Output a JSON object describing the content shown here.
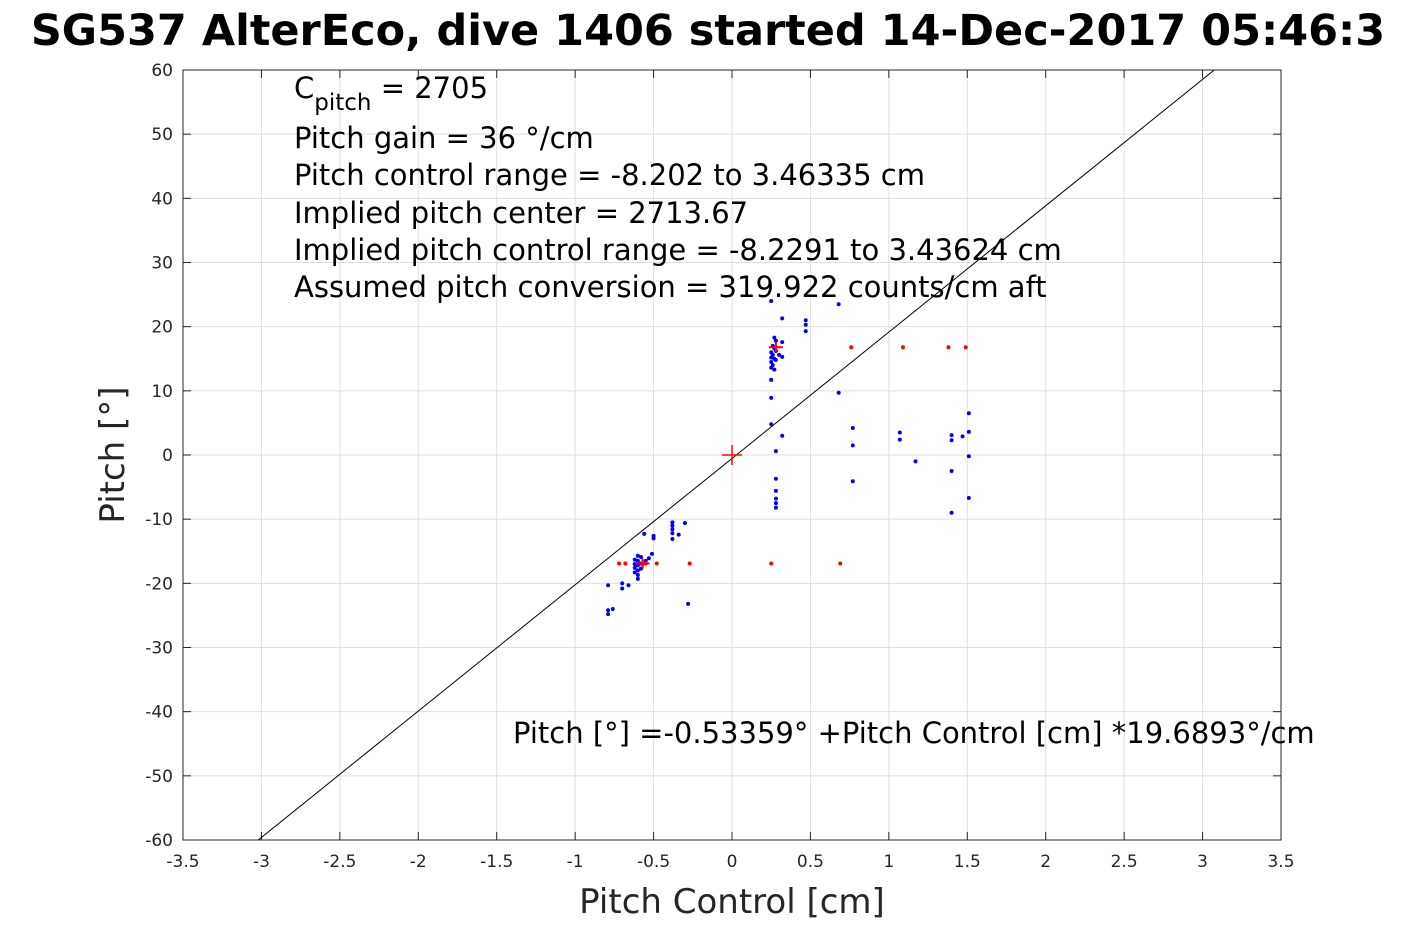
{
  "chart_data": {
    "type": "scatter",
    "title": "SG537 AlterEco, dive 1406 started 14-Dec-2017 05:46:3",
    "xlabel": "Pitch Control [cm]",
    "ylabel": "Pitch [°]",
    "xlim": [
      -3.5,
      3.5
    ],
    "ylim": [
      -60,
      60
    ],
    "x_ticks": [
      "-3.5",
      "-3",
      "-2.5",
      "-2",
      "-1.5",
      "-1",
      "-0.5",
      "0",
      "0.5",
      "1",
      "1.5",
      "2",
      "2.5",
      "3",
      "3.5"
    ],
    "y_ticks": [
      "60",
      "50",
      "40",
      "30",
      "20",
      "10",
      "0",
      "-10",
      "-20",
      "-30",
      "-40",
      "-50",
      "-60"
    ],
    "grid": true,
    "colors": {
      "blue_points": "#0000ff",
      "red_points": "#ff0000",
      "fit_line": "#000000"
    },
    "annotations": {
      "c_pitch_main": "C",
      "c_pitch_sub": "pitch",
      "c_pitch_value": " = 2705",
      "line2": "Pitch gain = 36 °/cm",
      "line3": "Pitch control range = -8.202 to 3.46335 cm",
      "line4": "Implied pitch center = 2713.67",
      "line5": "Implied pitch control range = -8.2291 to 3.43624 cm",
      "line6": "Assumed pitch conversion = 319.922 counts/cm aft",
      "fit_equation": "Pitch [°] =-0.53359° +Pitch Control [cm] *19.6893°/cm"
    },
    "fit_line": {
      "intercept": -0.53359,
      "slope": 19.6893
    },
    "center_marker": {
      "x": 0,
      "y": 0
    },
    "series": [
      {
        "color": "#0000ff",
        "points": [
          [
            -0.79,
            -20.3
          ],
          [
            -0.79,
            -24.2
          ],
          [
            -0.79,
            -24.8
          ],
          [
            -0.76,
            -24.0
          ],
          [
            -0.7,
            -20.0
          ],
          [
            -0.7,
            -20.8
          ],
          [
            -0.66,
            -20.3
          ],
          [
            -0.62,
            -16.3
          ],
          [
            -0.62,
            -17.0
          ],
          [
            -0.62,
            -17.6
          ],
          [
            -0.62,
            -18.3
          ],
          [
            -0.6,
            -15.7
          ],
          [
            -0.6,
            -16.5
          ],
          [
            -0.6,
            -17.2
          ],
          [
            -0.6,
            -18.0
          ],
          [
            -0.6,
            -18.7
          ],
          [
            -0.6,
            -19.3
          ],
          [
            -0.58,
            -15.9
          ],
          [
            -0.58,
            -16.9
          ],
          [
            -0.58,
            -17.7
          ],
          [
            -0.56,
            -12.3
          ],
          [
            -0.55,
            -16.5
          ],
          [
            -0.53,
            -16.1
          ],
          [
            -0.51,
            -15.4
          ],
          [
            -0.5,
            -12.6
          ],
          [
            -0.5,
            -13.0
          ],
          [
            -0.38,
            -10.5
          ],
          [
            -0.38,
            -11.0
          ],
          [
            -0.38,
            -11.6
          ],
          [
            -0.38,
            -12.2
          ],
          [
            -0.38,
            -13.1
          ],
          [
            -0.34,
            -12.4
          ],
          [
            -0.3,
            -10.6
          ],
          [
            -0.28,
            -23.2
          ],
          [
            0.25,
            24.0
          ],
          [
            0.25,
            16.0
          ],
          [
            0.25,
            15.2
          ],
          [
            0.25,
            14.5
          ],
          [
            0.25,
            13.6
          ],
          [
            0.25,
            11.7
          ],
          [
            0.25,
            8.9
          ],
          [
            0.25,
            4.8
          ],
          [
            0.26,
            17.0
          ],
          [
            0.26,
            15.6
          ],
          [
            0.26,
            14.0
          ],
          [
            0.27,
            18.3
          ],
          [
            0.27,
            16.6
          ],
          [
            0.27,
            15.0
          ],
          [
            0.27,
            13.3
          ],
          [
            0.28,
            17.8
          ],
          [
            0.28,
            16.2
          ],
          [
            0.28,
            14.8
          ],
          [
            0.28,
            0.6
          ],
          [
            0.28,
            -3.7
          ],
          [
            0.28,
            -5.6
          ],
          [
            0.28,
            -6.8
          ],
          [
            0.28,
            -7.5
          ],
          [
            0.28,
            -8.2
          ],
          [
            0.3,
            15.6
          ],
          [
            0.32,
            21.3
          ],
          [
            0.32,
            17.6
          ],
          [
            0.32,
            15.3
          ],
          [
            0.32,
            3.0
          ],
          [
            0.47,
            21.0
          ],
          [
            0.47,
            20.3
          ],
          [
            0.47,
            19.3
          ],
          [
            0.68,
            23.5
          ],
          [
            0.68,
            9.7
          ],
          [
            0.77,
            4.2
          ],
          [
            0.77,
            1.5
          ],
          [
            0.77,
            -4.1
          ],
          [
            1.07,
            3.5
          ],
          [
            1.07,
            2.4
          ],
          [
            1.17,
            -1.0
          ],
          [
            1.4,
            3.1
          ],
          [
            1.4,
            2.3
          ],
          [
            1.4,
            -2.5
          ],
          [
            1.4,
            -9.0
          ],
          [
            1.47,
            2.9
          ],
          [
            1.51,
            6.5
          ],
          [
            1.51,
            3.6
          ],
          [
            1.51,
            -0.2
          ],
          [
            1.51,
            -6.7
          ]
        ]
      },
      {
        "color": "#ff0000",
        "points": [
          [
            -0.72,
            -16.9
          ],
          [
            -0.68,
            -16.9
          ],
          [
            -0.57,
            -16.9
          ],
          [
            -0.55,
            -16.9
          ],
          [
            -0.48,
            -16.9
          ],
          [
            -0.27,
            -16.9
          ],
          [
            0.25,
            -16.9
          ],
          [
            0.69,
            -16.9
          ],
          [
            0.76,
            16.8
          ],
          [
            1.09,
            16.8
          ],
          [
            1.38,
            16.8
          ],
          [
            1.49,
            16.8
          ]
        ]
      },
      {
        "color": "#ff0000",
        "marker": "+",
        "points": [
          [
            0.28,
            16.8
          ],
          [
            -0.57,
            -16.9
          ]
        ]
      }
    ]
  }
}
